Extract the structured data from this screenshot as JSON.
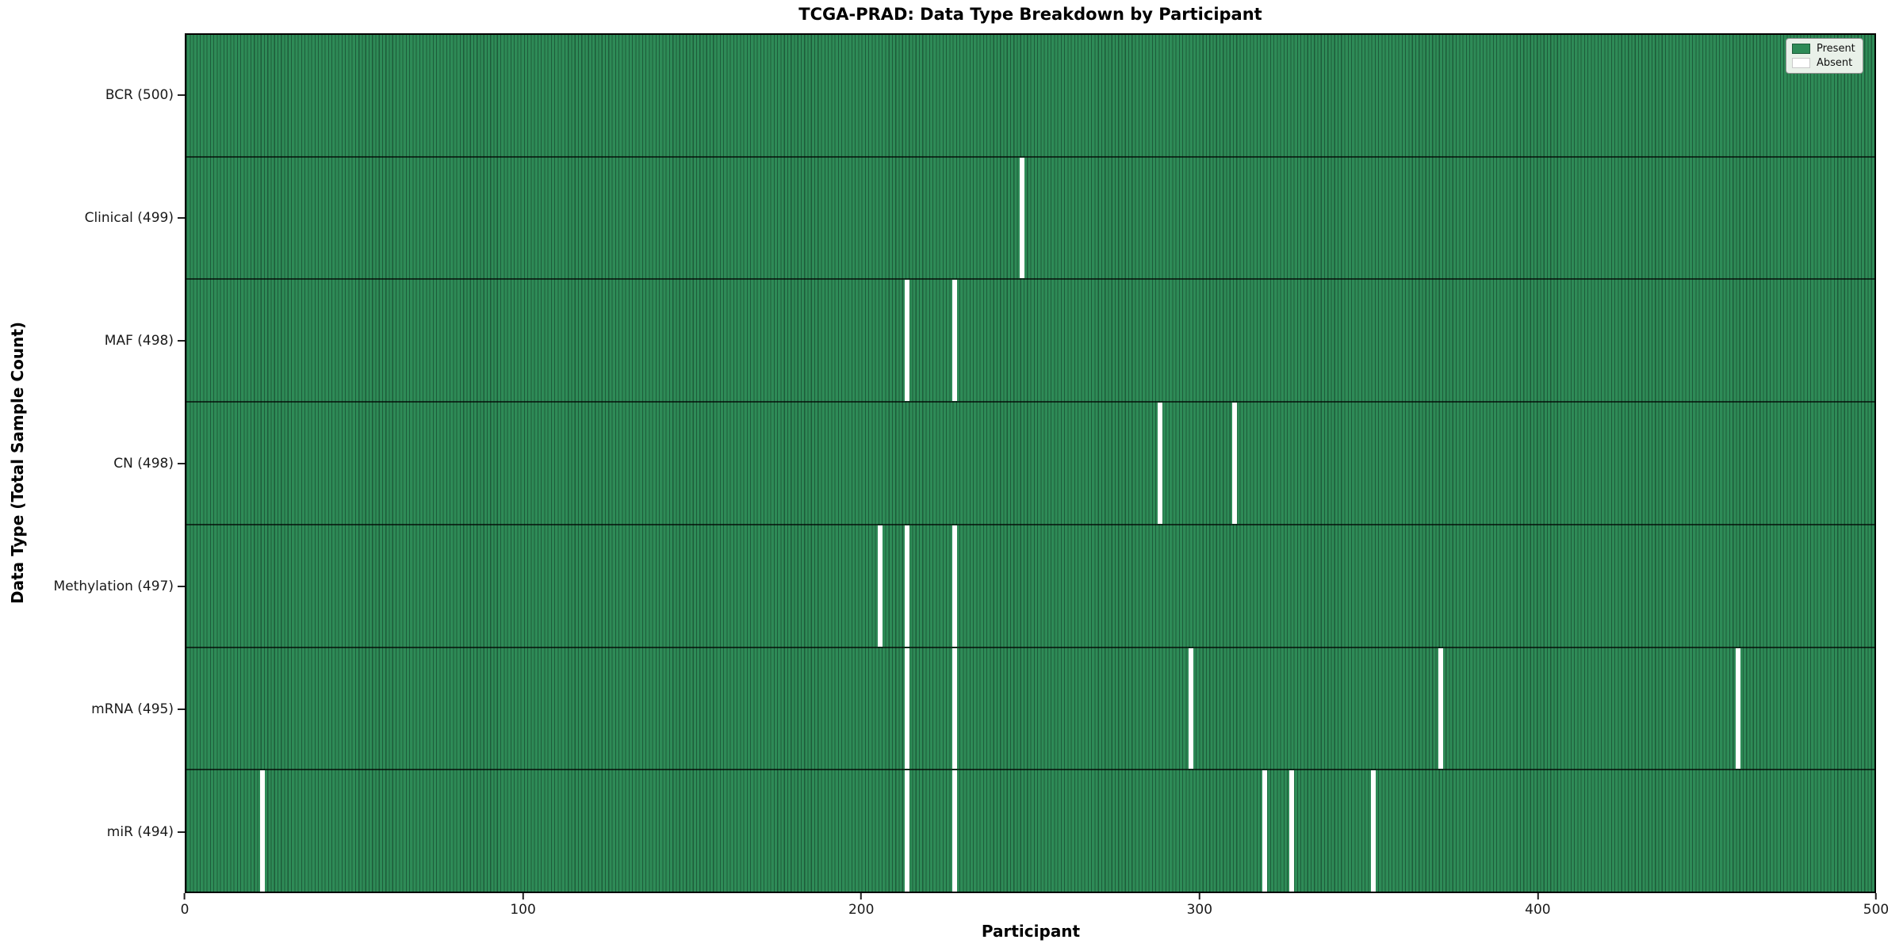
{
  "chart_data": {
    "type": "heatmap",
    "title": "TCGA-PRAD: Data Type Breakdown by Participant",
    "xlabel": "Participant",
    "ylabel": "Data Type (Total Sample Count)",
    "x_range": [
      0,
      500
    ],
    "x_ticks": [
      "0",
      "100",
      "200",
      "300",
      "400",
      "500"
    ],
    "n_participants": 500,
    "grid": false,
    "legend": {
      "position": "upper right",
      "entries": [
        {
          "label": "Present",
          "color": "#2e8b57"
        },
        {
          "label": "Absent",
          "color": "#ffffff"
        }
      ]
    },
    "colors": {
      "present": "#2e8b57",
      "present_cell_edge": "#1d5c3a",
      "absent": "#ffffff",
      "row_separator": "#000000"
    },
    "rows": [
      {
        "label": "BCR (500)",
        "data_type": "BCR",
        "present_count": 500,
        "absent_participants": []
      },
      {
        "label": "Clinical (499)",
        "data_type": "Clinical",
        "present_count": 499,
        "absent_participants": [
          247
        ]
      },
      {
        "label": "MAF (498)",
        "data_type": "MAF",
        "present_count": 498,
        "absent_participants": [
          213,
          227
        ]
      },
      {
        "label": "CN (498)",
        "data_type": "CN",
        "present_count": 498,
        "absent_participants": [
          288,
          310
        ]
      },
      {
        "label": "Methylation (497)",
        "data_type": "Methylation",
        "present_count": 497,
        "absent_participants": [
          205,
          213,
          227
        ]
      },
      {
        "label": "mRNA (495)",
        "data_type": "mRNA",
        "present_count": 495,
        "absent_participants": [
          213,
          227,
          297,
          371,
          459
        ]
      },
      {
        "label": "miR (494)",
        "data_type": "miR",
        "present_count": 494,
        "absent_participants": [
          22,
          213,
          227,
          319,
          327,
          351
        ]
      }
    ]
  }
}
